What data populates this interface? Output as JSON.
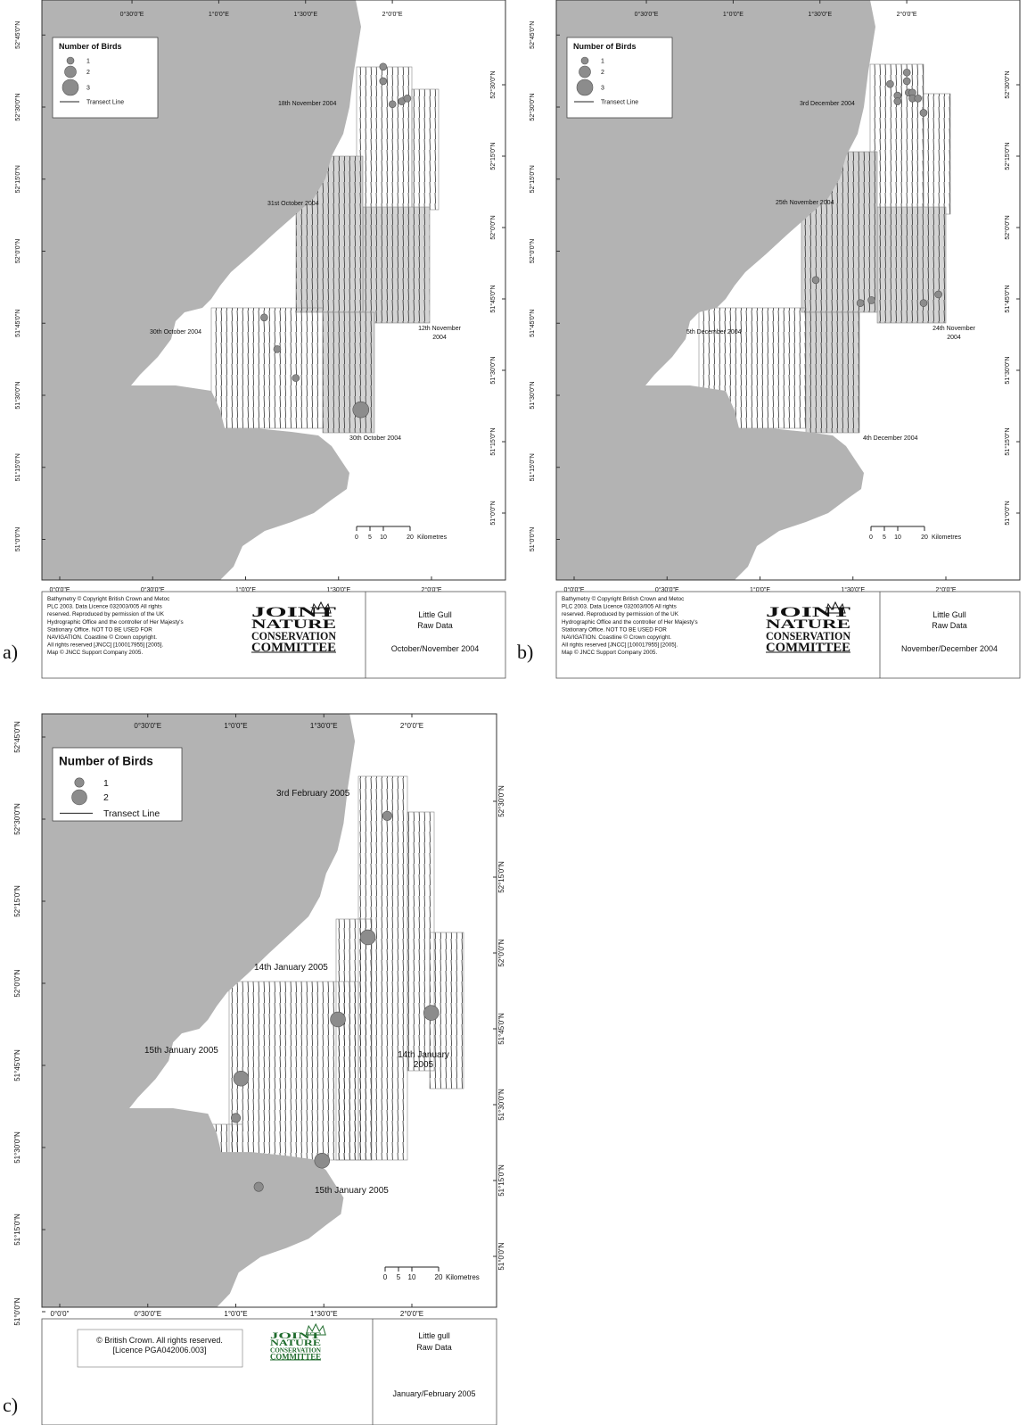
{
  "panels": [
    {
      "label": "a)",
      "top_ticks": [
        {
          "value": 0.5,
          "label": "0°30'0\"E"
        },
        {
          "value": 1.0,
          "label": "1°0'0\"E"
        },
        {
          "value": 1.5,
          "label": "1°30'0\"E"
        },
        {
          "value": 2.0,
          "label": "2°0'0\"E"
        }
      ],
      "bottom_ticks": [
        {
          "value": 0,
          "label": "0°0'0\"E"
        },
        {
          "value": 0.5,
          "label": "0°30'0\"E"
        },
        {
          "value": 1.0,
          "label": "1°0'0\"E"
        },
        {
          "value": 1.5,
          "label": "1°30'0\"E"
        },
        {
          "value": 2.0,
          "label": "2°0'0\"E"
        }
      ],
      "left_ticks": [
        {
          "value": 52.75,
          "label": "52°45'0\"N"
        },
        {
          "value": 52.5,
          "label": "52°30'0\"N"
        },
        {
          "value": 52.25,
          "label": "52°15'0\"N"
        },
        {
          "value": 52.0,
          "label": "52°0'0\"N"
        },
        {
          "value": 51.75,
          "label": "51°45'0\"N"
        },
        {
          "value": 51.5,
          "label": "51°30'0\"N"
        },
        {
          "value": 51.25,
          "label": "51°15'0\"N"
        },
        {
          "value": 51.0,
          "label": "51°0'0\"N"
        }
      ],
      "right_ticks": [
        {
          "value": 52.5,
          "label": "52°30'0\"N"
        },
        {
          "value": 52.25,
          "label": "52°15'0\"N"
        },
        {
          "value": 52.0,
          "label": "52°0'0\"N"
        },
        {
          "value": 51.75,
          "label": "51°45'0\"N"
        },
        {
          "value": 51.5,
          "label": "51°30'0\"N"
        },
        {
          "value": 51.25,
          "label": "51°15'0\"N"
        },
        {
          "value": 51.0,
          "label": "51°0'0\"N"
        }
      ],
      "legend": {
        "title": "Number of Birds",
        "sizes": [
          1,
          2,
          3
        ],
        "line_label": "Transect Line"
      },
      "survey_labels": [
        [
          "18th November 2004"
        ],
        [
          "31st October 2004"
        ],
        [
          "30th October 2004"
        ],
        [
          "12th November",
          "2004"
        ],
        [
          "30th October 2004"
        ]
      ],
      "birds": [
        {
          "lon": 1.74,
          "lat": 52.64,
          "count": 1
        },
        {
          "lon": 1.74,
          "lat": 52.59,
          "count": 1
        },
        {
          "lon": 1.79,
          "lat": 52.51,
          "count": 1
        },
        {
          "lon": 1.84,
          "lat": 52.52,
          "count": 1
        },
        {
          "lon": 1.87,
          "lat": 52.53,
          "count": 1
        },
        {
          "lon": 1.1,
          "lat": 51.77,
          "count": 1
        },
        {
          "lon": 1.17,
          "lat": 51.66,
          "count": 1
        },
        {
          "lon": 1.27,
          "lat": 51.56,
          "count": 1
        },
        {
          "lon": 1.62,
          "lat": 51.45,
          "count": 3
        }
      ],
      "scale": {
        "ticks": [
          0,
          5,
          10,
          20
        ],
        "unit": "Kilometres"
      },
      "footer": {
        "credit": [
          "Bathymetry © Copyright British Crown and Metoc",
          "PLC 2003. Data Licence 032003/005 All rights",
          "reserved. Reproduced by permission of the UK",
          "Hydrographic Office and the controller of Her Majesty's",
          "Stationary Office. NOT TO BE USED FOR",
          "NAVIGATION. Coastline © Crown copyright.",
          "All rights reserved [JNCC] [100017955] [2005].",
          "Map © JNCC Support Company 2005."
        ],
        "logo": [
          "JOINT",
          "NATURE",
          "CONSERVATION",
          "COMMITTEE"
        ],
        "title": [
          "Little Gull",
          "Raw Data"
        ],
        "period": "October/November 2004"
      }
    },
    {
      "label": "b)",
      "top_ticks": [
        {
          "value": 0.5,
          "label": "0°30'0\"E"
        },
        {
          "value": 1.0,
          "label": "1°0'0\"E"
        },
        {
          "value": 1.5,
          "label": "1°30'0\"E"
        },
        {
          "value": 2.0,
          "label": "2°0'0\"E"
        }
      ],
      "bottom_ticks": [
        {
          "value": 0,
          "label": "0°0'0\"E"
        },
        {
          "value": 0.5,
          "label": "0°30'0\"E"
        },
        {
          "value": 1.0,
          "label": "1°0'0\"E"
        },
        {
          "value": 1.5,
          "label": "1°30'0\"E"
        },
        {
          "value": 2.0,
          "label": "2°0'0\"E"
        }
      ],
      "left_ticks": [
        {
          "value": 52.75,
          "label": "52°45'0\"N"
        },
        {
          "value": 52.5,
          "label": "52°30'0\"N"
        },
        {
          "value": 52.25,
          "label": "52°15'0\"N"
        },
        {
          "value": 52.0,
          "label": "52°0'0\"N"
        },
        {
          "value": 51.75,
          "label": "51°45'0\"N"
        },
        {
          "value": 51.5,
          "label": "51°30'0\"N"
        },
        {
          "value": 51.25,
          "label": "51°15'0\"N"
        },
        {
          "value": 51.0,
          "label": "51°0'0\"N"
        }
      ],
      "right_ticks": [
        {
          "value": 52.5,
          "label": "52°30'0\"N"
        },
        {
          "value": 52.25,
          "label": "52°15'0\"N"
        },
        {
          "value": 52.0,
          "label": "52°0'0\"N"
        },
        {
          "value": 51.75,
          "label": "51°45'0\"N"
        },
        {
          "value": 51.5,
          "label": "51°30'0\"N"
        },
        {
          "value": 51.25,
          "label": "51°15'0\"N"
        },
        {
          "value": 51.0,
          "label": "51°0'0\"N"
        }
      ],
      "legend": {
        "title": "Number of Birds",
        "sizes": [
          1,
          2,
          3
        ],
        "line_label": "Transect Line"
      },
      "survey_labels": [
        [
          "3rd December 2004"
        ],
        [
          "25th November 2004"
        ],
        [
          "5th December 2004"
        ],
        [
          "24th November",
          "2004"
        ],
        [
          "4th December 2004"
        ]
      ],
      "birds": [
        {
          "lon": 1.7,
          "lat": 52.58,
          "count": 1
        },
        {
          "lon": 1.74,
          "lat": 52.54,
          "count": 1
        },
        {
          "lon": 1.74,
          "lat": 52.52,
          "count": 1
        },
        {
          "lon": 1.79,
          "lat": 52.62,
          "count": 1
        },
        {
          "lon": 1.79,
          "lat": 52.59,
          "count": 1
        },
        {
          "lon": 1.8,
          "lat": 52.55,
          "count": 1
        },
        {
          "lon": 1.82,
          "lat": 52.55,
          "count": 1
        },
        {
          "lon": 1.82,
          "lat": 52.53,
          "count": 1
        },
        {
          "lon": 1.85,
          "lat": 52.53,
          "count": 1
        },
        {
          "lon": 1.88,
          "lat": 52.48,
          "count": 1
        },
        {
          "lon": 1.3,
          "lat": 51.9,
          "count": 1
        },
        {
          "lon": 1.54,
          "lat": 51.82,
          "count": 1
        },
        {
          "lon": 1.6,
          "lat": 51.83,
          "count": 1
        },
        {
          "lon": 1.88,
          "lat": 51.82,
          "count": 1
        },
        {
          "lon": 1.96,
          "lat": 51.85,
          "count": 1
        }
      ],
      "scale": {
        "ticks": [
          0,
          5,
          10,
          20
        ],
        "unit": "Kilometres"
      },
      "footer": {
        "credit": [
          "Bathymetry © Copyright British Crown and Metoc",
          "PLC 2003. Data Licence 032003/005 All rights",
          "reserved. Reproduced by permission of the UK",
          "Hydrographic Office and the controller of Her Majesty's",
          "Stationary Office. NOT TO BE USED FOR",
          "NAVIGATION. Coastline © Crown copyright.",
          "All rights reserved [JNCC] [100017955] [2005].",
          "Map © JNCC Support Company 2005."
        ],
        "logo": [
          "JOINT",
          "NATURE",
          "CONSERVATION",
          "COMMITTEE"
        ],
        "title": [
          "Little Gull",
          "Raw Data"
        ],
        "period": "November/December 2004"
      }
    },
    {
      "label": "c)",
      "top_ticks": [
        {
          "value": 0.5,
          "label": "0°30'0\"E"
        },
        {
          "value": 1.0,
          "label": "1°0'0\"E"
        },
        {
          "value": 1.5,
          "label": "1°30'0\"E"
        },
        {
          "value": 2.0,
          "label": "2°0'0\"E"
        }
      ],
      "bottom_ticks": [
        {
          "value": 0,
          "label": "0°0'0\""
        },
        {
          "value": 0.5,
          "label": "0°30'0\"E"
        },
        {
          "value": 1.0,
          "label": "1°0'0\"E"
        },
        {
          "value": 1.5,
          "label": "1°30'0\"E"
        },
        {
          "value": 2.0,
          "label": "2°0'0\"E"
        }
      ],
      "left_ticks": [
        {
          "value": 52.75,
          "label": "52°45'0\"N"
        },
        {
          "value": 52.5,
          "label": "52°30'0\"N"
        },
        {
          "value": 52.25,
          "label": "52°15'0\"N"
        },
        {
          "value": 52.0,
          "label": "52°0'0\"N"
        },
        {
          "value": 51.75,
          "label": "51°45'0\"N"
        },
        {
          "value": 51.5,
          "label": "51°30'0\"N"
        },
        {
          "value": 51.25,
          "label": "51°15'0\"N"
        },
        {
          "value": 51.0,
          "label": "51°0'0\"N"
        }
      ],
      "right_ticks": [
        {
          "value": 52.5,
          "label": "52°30'0\"N"
        },
        {
          "value": 52.25,
          "label": "52°15'0\"N"
        },
        {
          "value": 52.0,
          "label": "52°0'0\"N"
        },
        {
          "value": 51.75,
          "label": "51°45'0\"N"
        },
        {
          "value": 51.5,
          "label": "51°30'0\"N"
        },
        {
          "value": 51.25,
          "label": "51°15'0\"N"
        },
        {
          "value": 51.0,
          "label": "51°0'0\"N"
        }
      ],
      "legend": {
        "title": "Number of Birds",
        "sizes": [
          1,
          2
        ],
        "line_label": "Transect Line"
      },
      "survey_labels": [
        [
          "3rd February 2005"
        ],
        [
          "14th January 2005"
        ],
        [
          "15th January 2005"
        ],
        [
          "14th January",
          "2005"
        ],
        [
          "15th January 2005"
        ]
      ],
      "birds": [
        {
          "lon": 1.86,
          "lat": 52.51,
          "count": 1
        },
        {
          "lon": 1.75,
          "lat": 52.14,
          "count": 2
        },
        {
          "lon": 2.11,
          "lat": 51.91,
          "count": 2
        },
        {
          "lon": 1.58,
          "lat": 51.89,
          "count": 2
        },
        {
          "lon": 1.03,
          "lat": 51.71,
          "count": 2
        },
        {
          "lon": 1.0,
          "lat": 51.59,
          "count": 1
        },
        {
          "lon": 1.49,
          "lat": 51.46,
          "count": 2
        },
        {
          "lon": 1.13,
          "lat": 51.38,
          "count": 1
        }
      ],
      "scale": {
        "ticks": [
          0,
          5,
          10,
          20
        ],
        "unit": "Kilometres"
      },
      "footer": {
        "credit": [
          "© British Crown. All rights reserved.",
          "[Licence PGA042006.003]"
        ],
        "logo": [
          "JOINT",
          "NATURE",
          "CONSERVATION",
          "COMMITTEE"
        ],
        "title": [
          "Little gull",
          "Raw Data"
        ],
        "period": "January/February 2005"
      }
    }
  ]
}
